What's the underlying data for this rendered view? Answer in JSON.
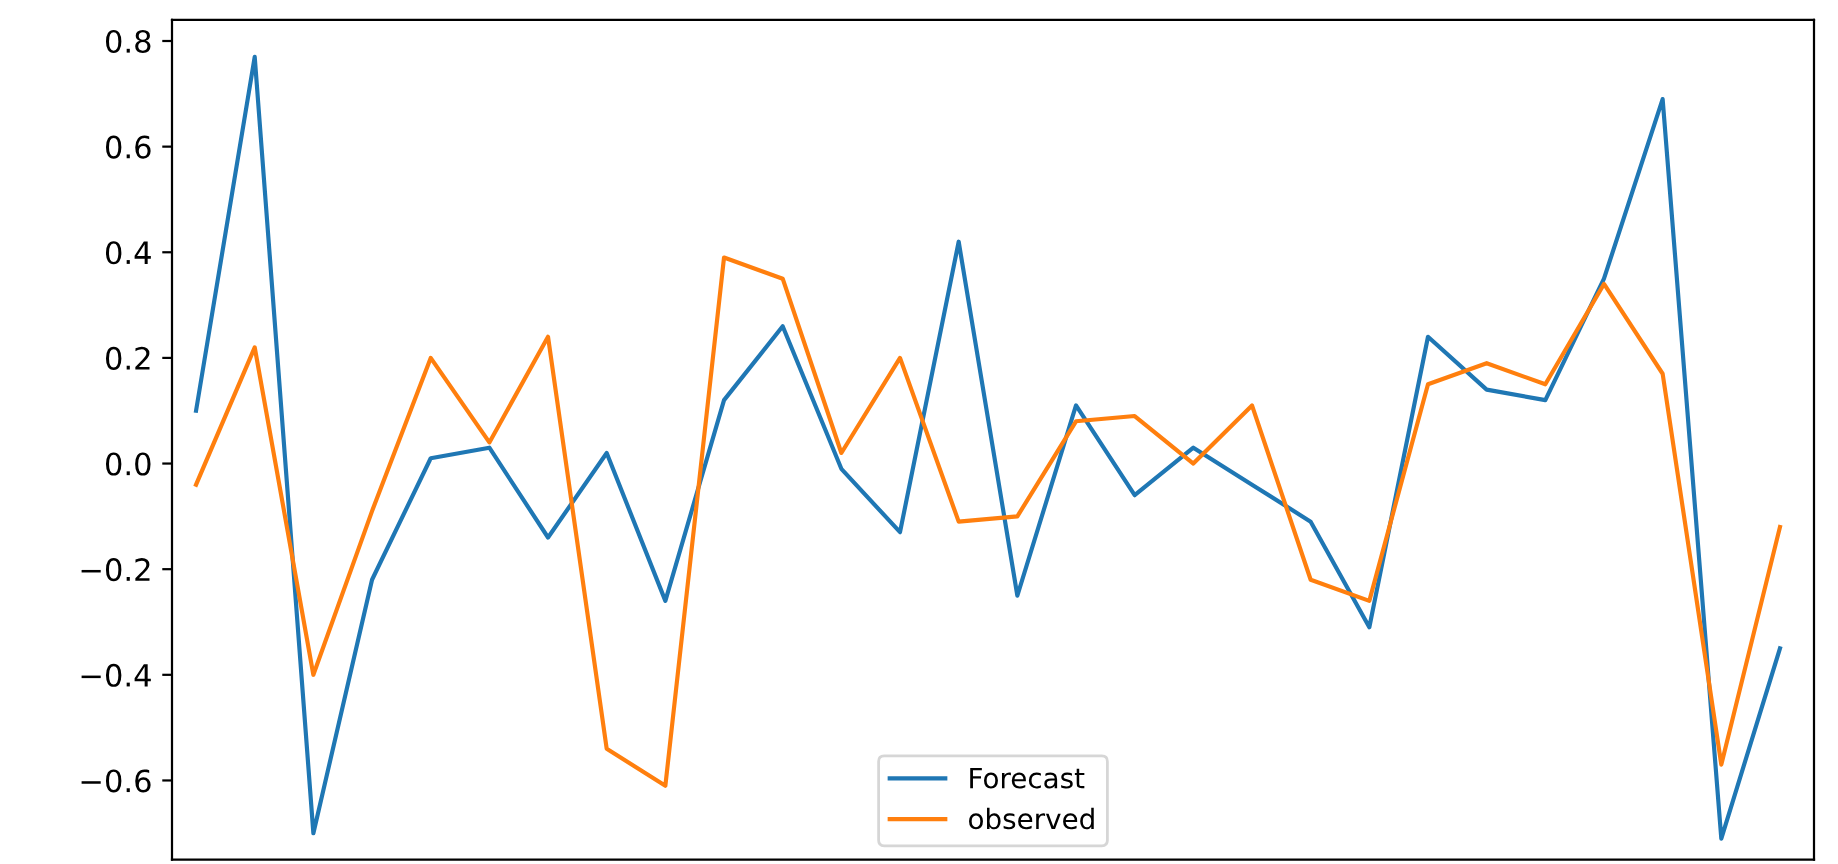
{
  "chart_data": {
    "type": "line",
    "categories": [
      null,
      null,
      null,
      null,
      null,
      null,
      null,
      null,
      null,
      null,
      null,
      null,
      null,
      null,
      null,
      null,
      null,
      null,
      null,
      null,
      null,
      null,
      null,
      null,
      null,
      null,
      null,
      null
    ],
    "series": [
      {
        "name": "Forecast",
        "color": "#1f77b4",
        "values": [
          0.1,
          0.77,
          -0.7,
          -0.22,
          0.01,
          0.03,
          -0.14,
          0.02,
          -0.26,
          0.12,
          0.26,
          -0.01,
          -0.13,
          0.42,
          -0.25,
          0.11,
          -0.06,
          0.03,
          -0.04,
          -0.11,
          -0.31,
          0.24,
          0.14,
          0.12,
          0.35,
          0.69,
          -0.71,
          -0.35
        ]
      },
      {
        "name": "observed",
        "color": "#ff7f0e",
        "values": [
          -0.04,
          0.22,
          -0.4,
          -0.09,
          0.2,
          0.04,
          0.24,
          -0.54,
          -0.61,
          0.39,
          0.35,
          0.02,
          0.2,
          -0.11,
          -0.1,
          0.08,
          0.09,
          0.0,
          0.11,
          -0.22,
          -0.26,
          0.15,
          0.19,
          0.15,
          0.34,
          0.17,
          -0.57,
          -0.12
        ]
      }
    ],
    "ylim": [
      -0.75,
      0.84
    ],
    "yticks": [
      {
        "value": -0.6,
        "label": "−0.6"
      },
      {
        "value": -0.4,
        "label": "−0.4"
      },
      {
        "value": -0.2,
        "label": "−0.2"
      },
      {
        "value": 0.0,
        "label": "0.0"
      },
      {
        "value": 0.2,
        "label": "0.2"
      },
      {
        "value": 0.4,
        "label": "0.4"
      },
      {
        "value": 0.6,
        "label": "0.6"
      },
      {
        "value": 0.8,
        "label": "0.8"
      }
    ],
    "tick_labels": "y",
    "legend": "bottom",
    "grid": false,
    "marker": "none",
    "line_style": "solid"
  }
}
